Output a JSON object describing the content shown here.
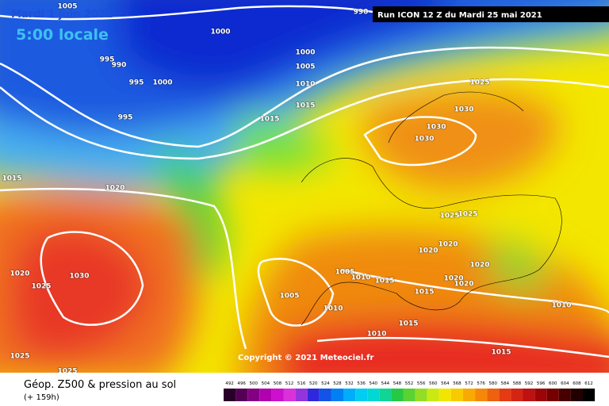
{
  "header": {
    "date": "Mardi 1 juin 2021",
    "time": "5:00 locale",
    "run": "Run ICON 12 Z du Mardi 25 mai 2021"
  },
  "copyright": "Copyright © 2021 Meteociel.fr",
  "footer": {
    "title": "Géop. Z500 & pression au sol",
    "subtitle": "(+ 159h)"
  },
  "scale": {
    "values": [
      492,
      496,
      500,
      504,
      508,
      512,
      516,
      520,
      524,
      528,
      532,
      536,
      540,
      544,
      548,
      552,
      556,
      560,
      564,
      568,
      572,
      576,
      580,
      584,
      588,
      592,
      596,
      600,
      604,
      608,
      612
    ]
  },
  "isobar_labels": [
    "1005",
    "990",
    "1000",
    "1000",
    "995",
    "990",
    "1005",
    "995",
    "1000",
    "1010",
    "1015",
    "995",
    "1015",
    "1025",
    "1030",
    "1030",
    "1030",
    "1015",
    "1020",
    "1025",
    "1025",
    "1020",
    "1020",
    "1020",
    "1020",
    "1030",
    "1025",
    "1005",
    "1010",
    "1015",
    "1020",
    "1020",
    "1015",
    "1005",
    "1010",
    "1010",
    "1015",
    "1010",
    "1015",
    "1025",
    "1025"
  ]
}
